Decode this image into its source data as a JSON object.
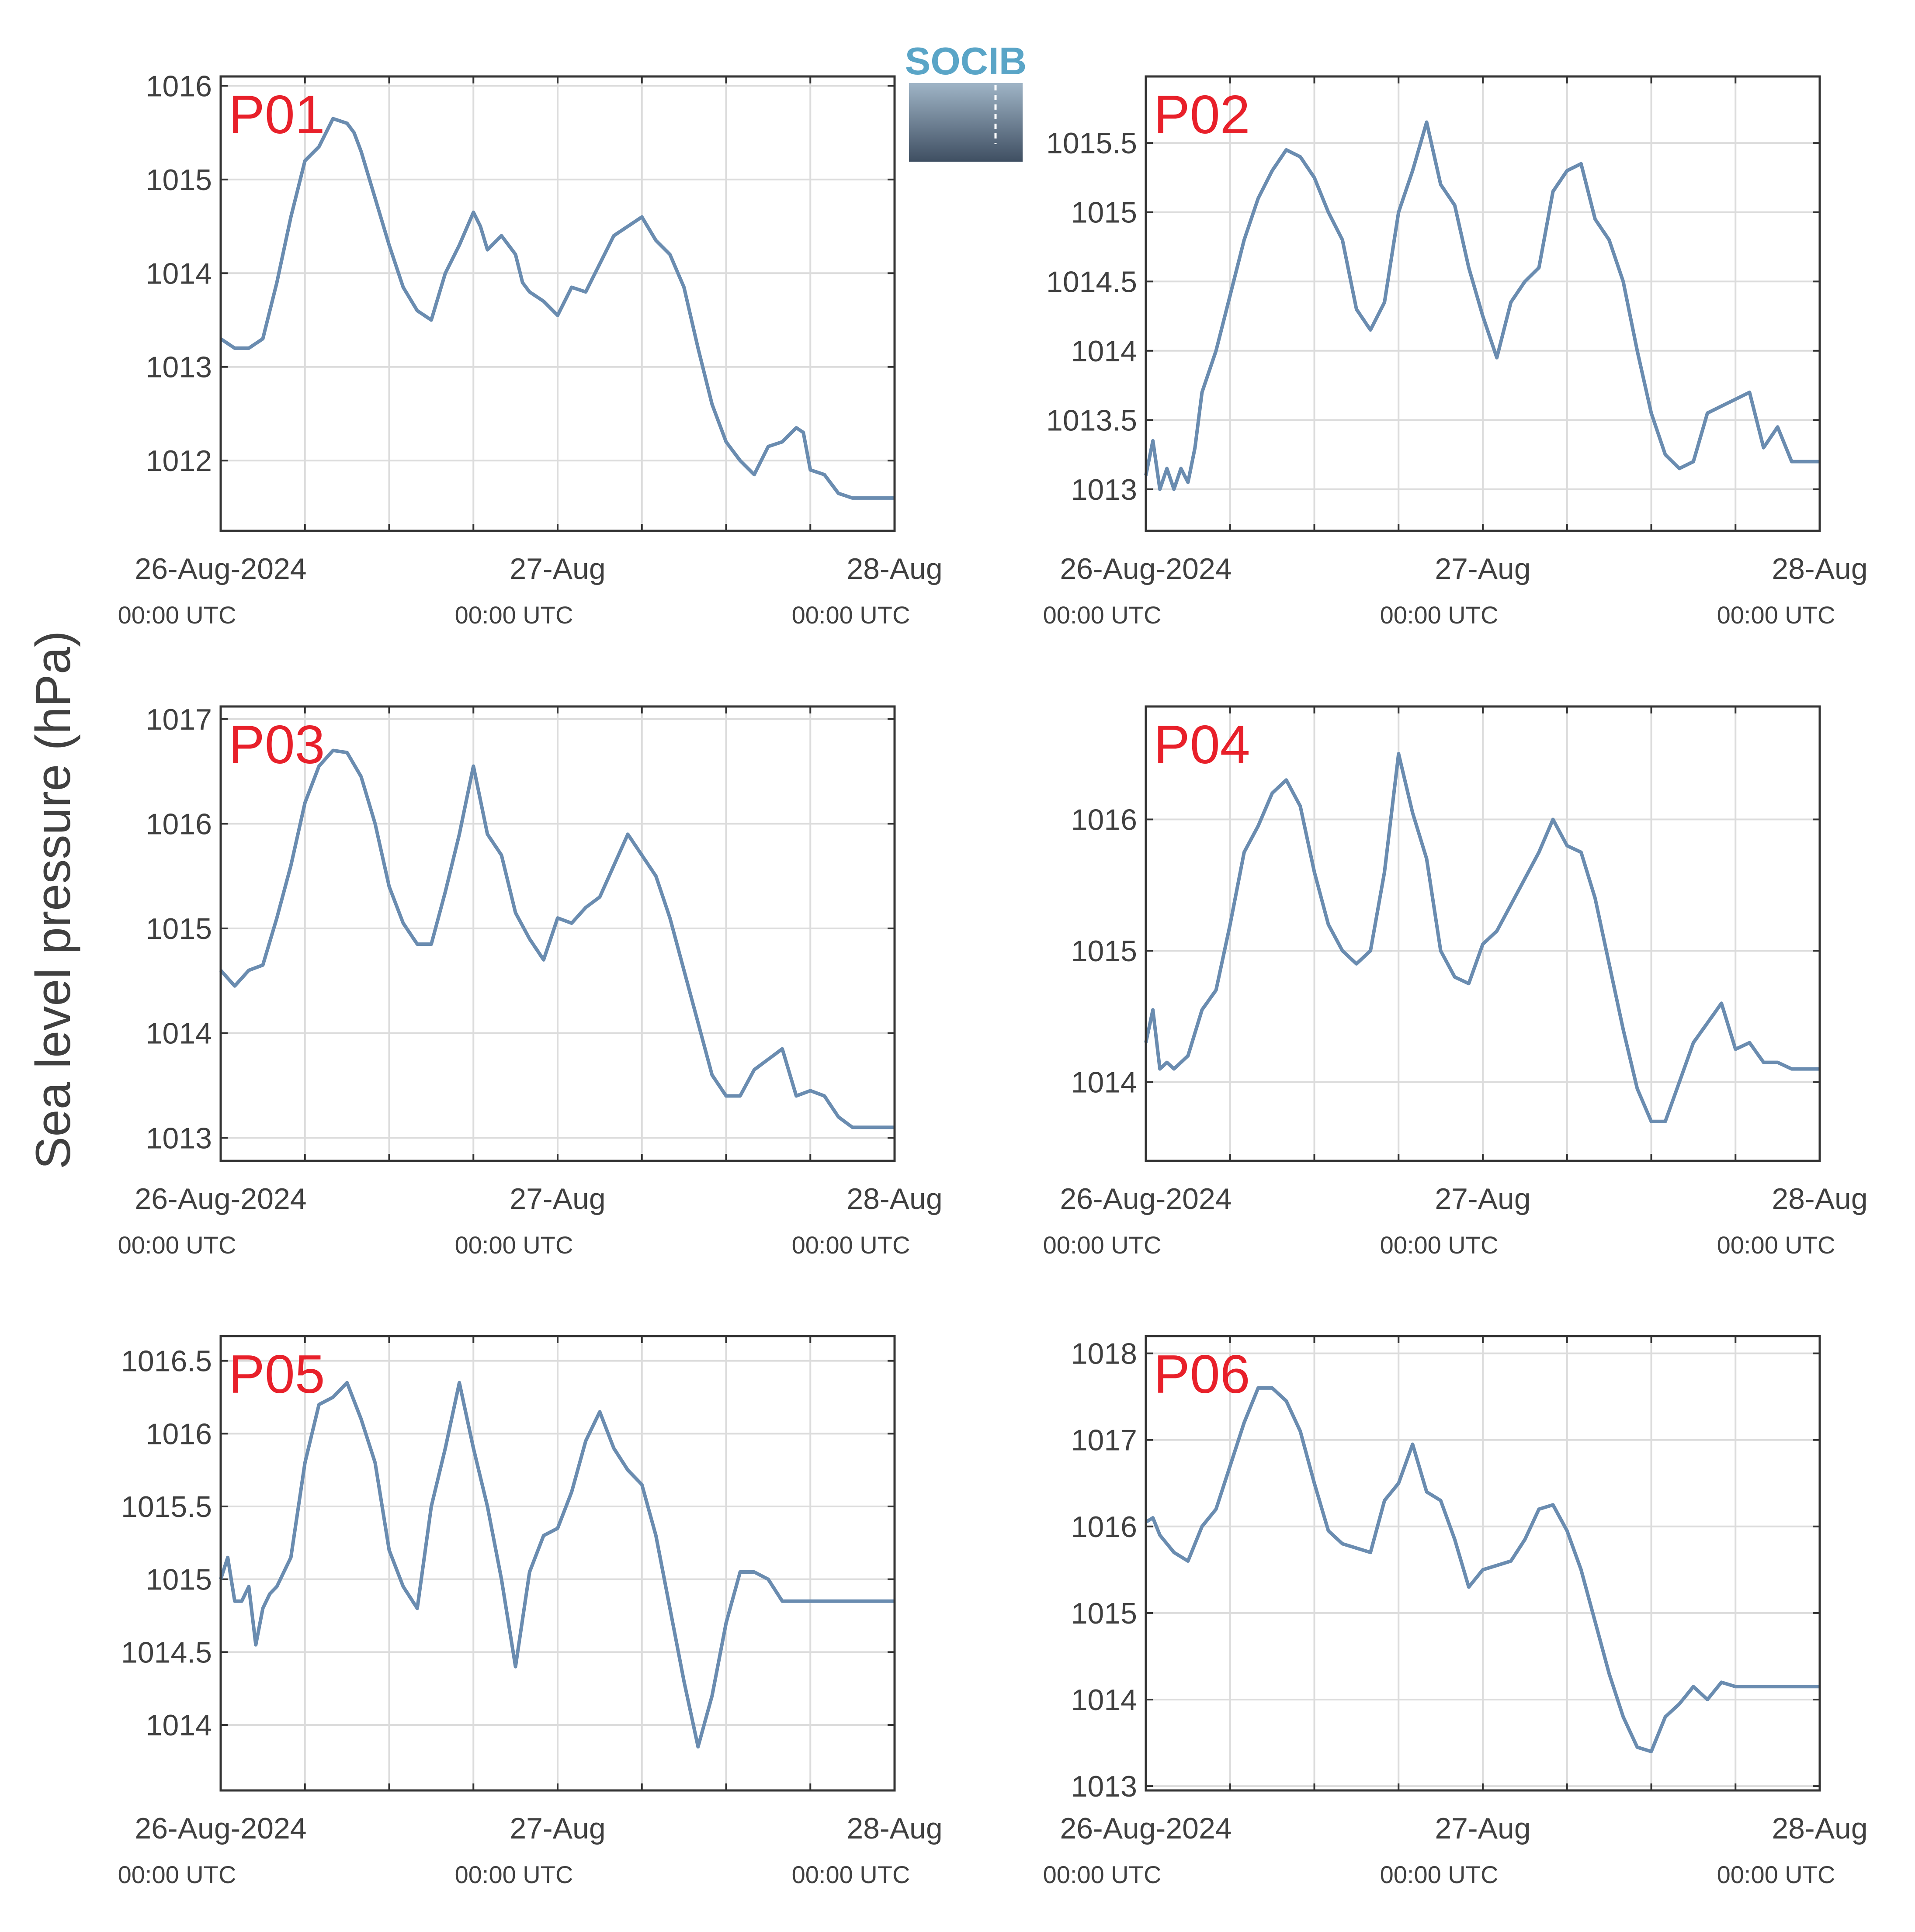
{
  "figure": {
    "ylabel": "Sea level pressure (hPa)",
    "logo_text": "SOCIB",
    "line_color": "#6a8cb0",
    "panel_label_color": "#e8202a",
    "grid_color": "#dcdcdc"
  },
  "x_ticks": [
    {
      "x": 0,
      "date": "26-Aug-2024",
      "time": "00:00 UTC"
    },
    {
      "x": 24,
      "date": "27-Aug",
      "time": "00:00 UTC"
    },
    {
      "x": 48,
      "date": "28-Aug",
      "time": "00:00 UTC"
    }
  ],
  "chart_data": [
    {
      "type": "line",
      "label": "P01",
      "xlim": [
        0,
        48
      ],
      "ylim": [
        1011.25,
        1016.1
      ],
      "yticks": [
        1012,
        1013,
        1014,
        1015,
        1016
      ],
      "x": [
        0,
        1,
        2,
        3,
        4,
        5,
        6,
        7,
        8,
        9,
        9.5,
        10,
        11,
        12,
        13,
        14,
        15,
        16,
        17,
        18,
        18.5,
        19,
        20,
        21,
        21.5,
        22,
        23,
        24,
        25,
        26,
        26.5,
        27,
        28,
        29,
        30,
        31,
        32,
        33,
        34,
        35,
        36,
        37,
        38,
        39,
        40,
        41,
        41.5,
        42,
        43,
        44,
        45,
        46,
        47,
        48
      ],
      "values": [
        1013.3,
        1013.2,
        1013.2,
        1013.3,
        1013.9,
        1014.6,
        1015.2,
        1015.35,
        1015.65,
        1015.6,
        1015.5,
        1015.3,
        1014.8,
        1014.3,
        1013.85,
        1013.6,
        1013.5,
        1014.0,
        1014.3,
        1014.65,
        1014.5,
        1014.25,
        1014.4,
        1014.2,
        1013.9,
        1013.8,
        1013.7,
        1013.55,
        1013.85,
        1013.8,
        1013.95,
        1014.1,
        1014.4,
        1014.5,
        1014.6,
        1014.35,
        1014.2,
        1013.85,
        1013.2,
        1012.6,
        1012.2,
        1012.0,
        1011.85,
        1012.15,
        1012.2,
        1012.35,
        1012.3,
        1011.9,
        1011.85,
        1011.65,
        1011.6,
        1011.6,
        1011.6,
        1011.6
      ]
    },
    {
      "type": "line",
      "label": "P02",
      "xlim": [
        0,
        48
      ],
      "ylim": [
        1012.7,
        1015.98
      ],
      "yticks": [
        1013,
        1013.5,
        1014,
        1014.5,
        1015,
        1015.5
      ],
      "x": [
        0,
        0.5,
        1,
        1.5,
        2,
        2.5,
        3,
        3.5,
        4,
        5,
        6,
        7,
        8,
        9,
        10,
        11,
        12,
        13,
        14,
        15,
        16,
        17,
        18,
        19,
        20,
        21,
        22,
        23,
        24,
        25,
        26,
        27,
        28,
        29,
        30,
        31,
        32,
        33,
        34,
        35,
        36,
        37,
        38,
        39,
        40,
        41,
        42,
        43,
        44,
        45,
        46,
        47,
        48
      ],
      "values": [
        1013.1,
        1013.35,
        1013.0,
        1013.15,
        1013.0,
        1013.15,
        1013.05,
        1013.3,
        1013.7,
        1014.0,
        1014.4,
        1014.8,
        1015.1,
        1015.3,
        1015.45,
        1015.4,
        1015.25,
        1015.0,
        1014.8,
        1014.3,
        1014.15,
        1014.35,
        1015.0,
        1015.3,
        1015.65,
        1015.2,
        1015.05,
        1014.6,
        1014.25,
        1013.95,
        1014.35,
        1014.5,
        1014.6,
        1015.15,
        1015.3,
        1015.35,
        1014.95,
        1014.8,
        1014.5,
        1014.0,
        1013.55,
        1013.25,
        1013.15,
        1013.2,
        1013.55,
        1013.6,
        1013.65,
        1013.7,
        1013.3,
        1013.45,
        1013.2,
        1013.2,
        1013.2
      ]
    },
    {
      "type": "line",
      "label": "P03",
      "xlim": [
        0,
        48
      ],
      "ylim": [
        1012.78,
        1017.12
      ],
      "yticks": [
        1013,
        1014,
        1015,
        1016,
        1017
      ],
      "x": [
        0,
        1,
        2,
        3,
        4,
        5,
        6,
        7,
        8,
        9,
        10,
        11,
        12,
        13,
        14,
        15,
        16,
        17,
        18,
        19,
        20,
        21,
        22,
        23,
        24,
        25,
        26,
        27,
        28,
        29,
        30,
        31,
        32,
        33,
        34,
        35,
        36,
        37,
        38,
        39,
        40,
        41,
        42,
        43,
        44,
        45,
        46,
        47,
        48
      ],
      "values": [
        1014.6,
        1014.45,
        1014.6,
        1014.65,
        1015.1,
        1015.6,
        1016.2,
        1016.55,
        1016.7,
        1016.68,
        1016.45,
        1016.0,
        1015.4,
        1015.05,
        1014.85,
        1014.85,
        1015.35,
        1015.9,
        1016.55,
        1015.9,
        1015.7,
        1015.15,
        1014.9,
        1014.7,
        1015.1,
        1015.05,
        1015.2,
        1015.3,
        1015.6,
        1015.9,
        1015.7,
        1015.5,
        1015.1,
        1014.6,
        1014.1,
        1013.6,
        1013.4,
        1013.4,
        1013.65,
        1013.75,
        1013.85,
        1013.4,
        1013.45,
        1013.4,
        1013.2,
        1013.1,
        1013.1,
        1013.1,
        1013.1
      ]
    },
    {
      "type": "line",
      "label": "P04",
      "xlim": [
        0,
        48
      ],
      "ylim": [
        1013.4,
        1016.86
      ],
      "yticks": [
        1014,
        1015,
        1016
      ],
      "x": [
        0,
        0.5,
        1,
        1.5,
        2,
        3,
        4,
        5,
        6,
        7,
        8,
        9,
        10,
        11,
        12,
        13,
        14,
        15,
        16,
        17,
        18,
        19,
        20,
        21,
        22,
        23,
        24,
        25,
        26,
        27,
        28,
        29,
        30,
        31,
        32,
        33,
        34,
        35,
        36,
        37,
        38,
        39,
        40,
        41,
        42,
        43,
        44,
        45,
        46,
        47,
        48
      ],
      "values": [
        1014.3,
        1014.55,
        1014.1,
        1014.15,
        1014.1,
        1014.2,
        1014.55,
        1014.7,
        1015.2,
        1015.75,
        1015.95,
        1016.2,
        1016.3,
        1016.1,
        1015.6,
        1015.2,
        1015.0,
        1014.9,
        1015.0,
        1015.6,
        1016.5,
        1016.05,
        1015.7,
        1015.0,
        1014.8,
        1014.75,
        1015.05,
        1015.15,
        1015.35,
        1015.55,
        1015.75,
        1016.0,
        1015.8,
        1015.75,
        1015.4,
        1014.9,
        1014.4,
        1013.95,
        1013.7,
        1013.7,
        1014.0,
        1014.3,
        1014.45,
        1014.6,
        1014.25,
        1014.3,
        1014.15,
        1014.15,
        1014.1,
        1014.1,
        1014.1
      ]
    },
    {
      "type": "line",
      "label": "P05",
      "xlim": [
        0,
        48
      ],
      "ylim": [
        1013.55,
        1016.67
      ],
      "yticks": [
        1014,
        1014.5,
        1015,
        1015.5,
        1016,
        1016.5
      ],
      "x": [
        0,
        0.5,
        1,
        1.5,
        2,
        2.5,
        3,
        3.5,
        4,
        5,
        6,
        7,
        8,
        9,
        10,
        11,
        12,
        13,
        14,
        15,
        16,
        17,
        18,
        19,
        20,
        21,
        22,
        23,
        24,
        25,
        26,
        27,
        28,
        29,
        30,
        31,
        32,
        33,
        34,
        35,
        36,
        37,
        38,
        39,
        40,
        41,
        42,
        43,
        44,
        45,
        46,
        47,
        48
      ],
      "values": [
        1015.0,
        1015.15,
        1014.85,
        1014.85,
        1014.95,
        1014.55,
        1014.8,
        1014.9,
        1014.95,
        1015.15,
        1015.8,
        1016.2,
        1016.25,
        1016.35,
        1016.1,
        1015.8,
        1015.2,
        1014.95,
        1014.8,
        1015.5,
        1015.9,
        1016.35,
        1015.9,
        1015.5,
        1015.0,
        1014.4,
        1015.05,
        1015.3,
        1015.35,
        1015.6,
        1015.95,
        1016.15,
        1015.9,
        1015.75,
        1015.65,
        1015.3,
        1014.8,
        1014.3,
        1013.85,
        1014.2,
        1014.7,
        1015.05,
        1015.05,
        1015.0,
        1014.85,
        1014.85,
        1014.85,
        1014.85,
        1014.85,
        1014.85,
        1014.85,
        1014.85,
        1014.85
      ]
    },
    {
      "type": "line",
      "label": "P06",
      "xlim": [
        0,
        48
      ],
      "ylim": [
        1012.95,
        1018.2
      ],
      "yticks": [
        1013,
        1014,
        1015,
        1016,
        1017,
        1018
      ],
      "x": [
        0,
        0.5,
        1,
        2,
        3,
        4,
        5,
        6,
        7,
        8,
        9,
        10,
        11,
        12,
        13,
        14,
        15,
        16,
        17,
        18,
        19,
        20,
        21,
        22,
        23,
        24,
        25,
        26,
        27,
        28,
        29,
        30,
        31,
        32,
        33,
        34,
        35,
        36,
        37,
        38,
        39,
        40,
        41,
        42,
        43,
        44,
        45,
        46,
        47,
        48
      ],
      "values": [
        1016.05,
        1016.1,
        1015.9,
        1015.7,
        1015.6,
        1016.0,
        1016.2,
        1016.7,
        1017.2,
        1017.6,
        1017.6,
        1017.45,
        1017.1,
        1016.5,
        1015.95,
        1015.8,
        1015.75,
        1015.7,
        1016.3,
        1016.5,
        1016.95,
        1016.4,
        1016.3,
        1015.85,
        1015.3,
        1015.5,
        1015.55,
        1015.6,
        1015.85,
        1016.2,
        1016.25,
        1015.95,
        1015.5,
        1014.9,
        1014.3,
        1013.8,
        1013.45,
        1013.4,
        1013.8,
        1013.95,
        1014.15,
        1014.0,
        1014.2,
        1014.15,
        1014.15,
        1014.15,
        1014.15,
        1014.15,
        1014.15,
        1014.15
      ]
    }
  ]
}
